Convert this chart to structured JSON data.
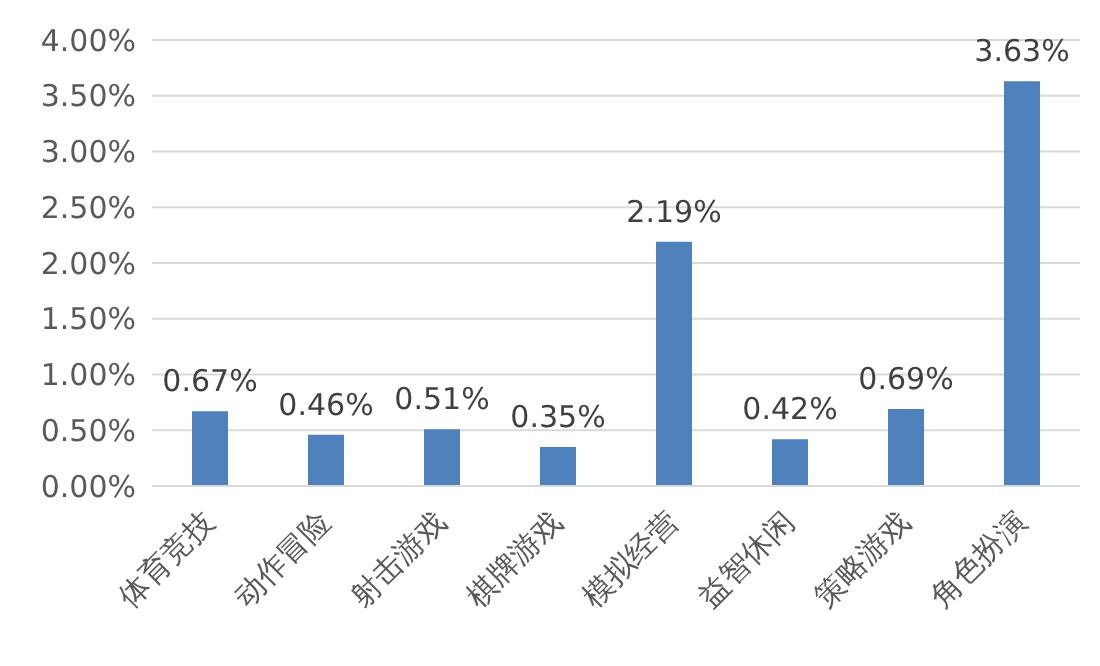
{
  "chart_data": {
    "type": "bar",
    "categories": [
      "体育竞技",
      "动作冒险",
      "射击游戏",
      "棋牌游戏",
      "模拟经营",
      "益智休闲",
      "策略游戏",
      "角色扮演"
    ],
    "values": [
      0.67,
      0.46,
      0.51,
      0.35,
      2.19,
      0.42,
      0.69,
      3.63
    ],
    "value_labels": [
      "0.67%",
      "0.46%",
      "0.51%",
      "0.35%",
      "2.19%",
      "0.42%",
      "0.69%",
      "3.63%"
    ],
    "color": "#4f81bd",
    "ylim": [
      0,
      4
    ],
    "yticks": [
      {
        "value": 0,
        "label": "0.00%"
      },
      {
        "value": 0.5,
        "label": "0.50%"
      },
      {
        "value": 1,
        "label": "1.00%"
      },
      {
        "value": 1.5,
        "label": "1.50%"
      },
      {
        "value": 2,
        "label": "2.00%"
      },
      {
        "value": 2.5,
        "label": "2.50%"
      },
      {
        "value": 3,
        "label": "3.00%"
      },
      {
        "value": 3.5,
        "label": "3.50%"
      },
      {
        "value": 4,
        "label": "4.00%"
      }
    ],
    "grid": "y"
  }
}
